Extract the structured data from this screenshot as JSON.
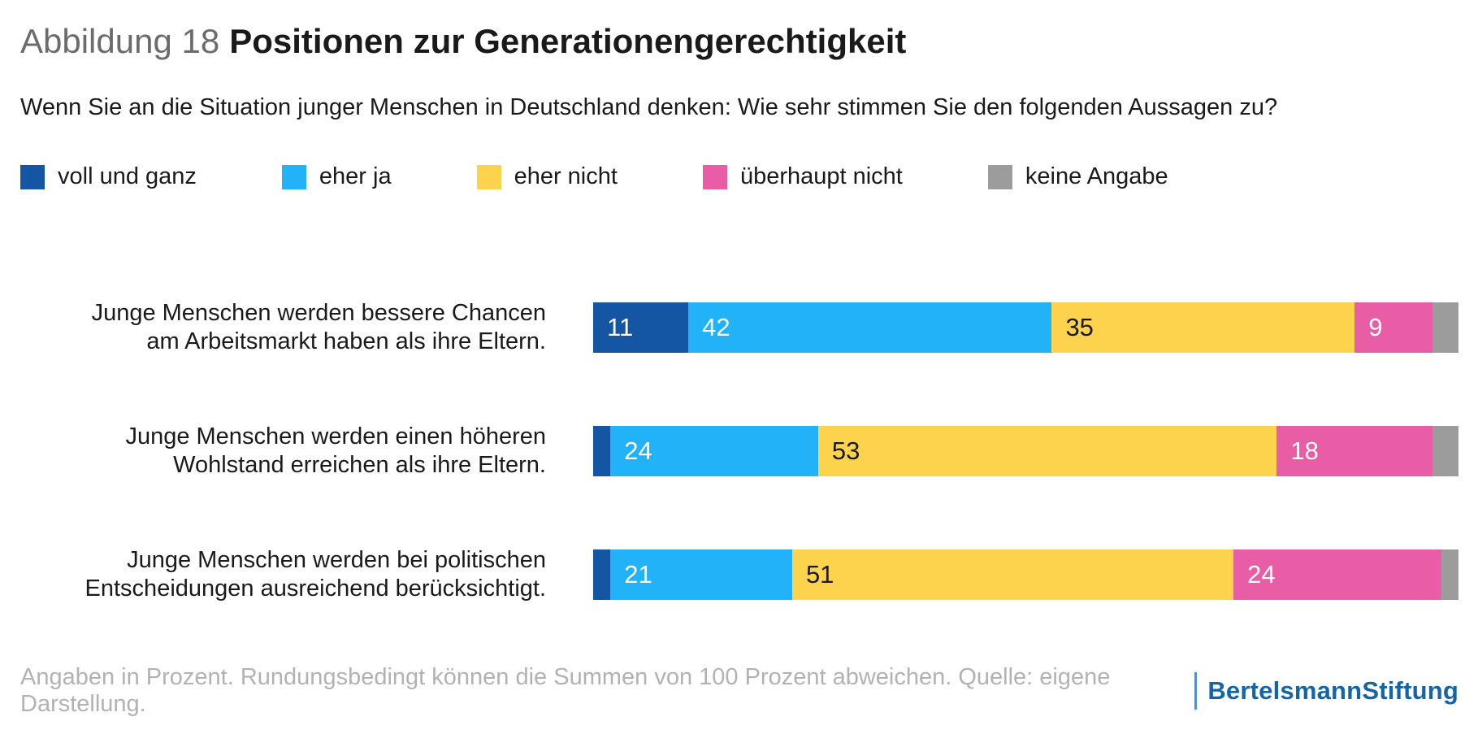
{
  "figure": {
    "label": "Abbildung 18",
    "title": "Positionen zur Generationengerechtigkeit",
    "question": "Wenn Sie an die Situation junger Menschen in Deutschland denken: Wie sehr stimmen Sie den folgenden Aussagen zu?",
    "footnote": "Angaben in Prozent. Rundungsbedingt können die Summen von 100 Prozent abweichen. Quelle: eigene Darstellung.",
    "brand": {
      "part1": "Bertelsmann",
      "part2": "Stiftung"
    }
  },
  "colors": {
    "voll_und_ganz": "#1456a4",
    "eher_ja": "#21b2f8",
    "eher_nicht": "#fdd24c",
    "ueberhaupt_nicht": "#e95da6",
    "keine_angabe": "#9c9c9c",
    "value_text_light": "#ffffff",
    "value_text_dark": "#1a1a1a",
    "footnote_gray": "#b2b2b2",
    "brand_blue": "#1464a8",
    "brand_separator_blue": "#4d8fd1"
  },
  "chart_data": {
    "type": "bar",
    "stacked": true,
    "orientation": "horizontal",
    "unit": "percent",
    "xlim": [
      0,
      100
    ],
    "grid": false,
    "legend_position": "top",
    "legend": [
      "voll und ganz",
      "eher ja",
      "eher nicht",
      "überhaupt nicht",
      "keine Angabe"
    ],
    "legend_colors": [
      "#1456a4",
      "#21b2f8",
      "#fdd24c",
      "#e95da6",
      "#9c9c9c"
    ],
    "categories": [
      [
        "Junge Menschen werden bessere Chancen",
        "am Arbeitsmarkt haben als ihre Eltern."
      ],
      [
        "Junge Menschen werden einen höheren",
        "Wohlstand erreichen als ihre Eltern."
      ],
      [
        "Junge Menschen werden bei politischen",
        "Entscheidungen ausreichend berücksichtigt."
      ]
    ],
    "series": [
      {
        "name": "voll und ganz",
        "values": [
          11,
          2,
          2
        ]
      },
      {
        "name": "eher ja",
        "values": [
          42,
          24,
          21
        ]
      },
      {
        "name": "eher nicht",
        "values": [
          35,
          53,
          51
        ]
      },
      {
        "name": "überhaupt nicht",
        "values": [
          9,
          18,
          24
        ]
      },
      {
        "name": "keine Angabe",
        "values": [
          3,
          3,
          2
        ]
      }
    ],
    "value_label_min": 5,
    "dark_text_series_index": 2
  }
}
